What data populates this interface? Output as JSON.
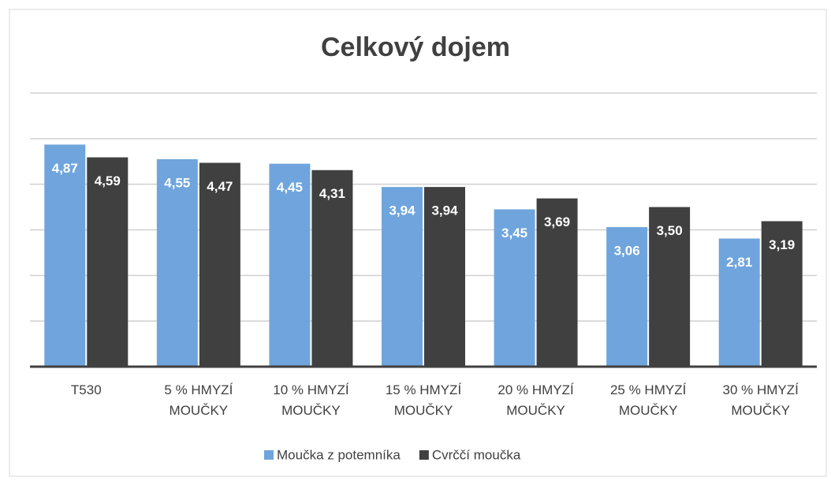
{
  "chart_data": {
    "type": "bar",
    "title": "Celkový dojem",
    "categories": [
      "T530",
      "5 % HMYZÍ MOUČKY",
      "10 % HMYZÍ MOUČKY",
      "15 % HMYZÍ MOUČKY",
      "20 % HMYZÍ MOUČKY",
      "25 % HMYZÍ MOUČKY",
      "30 % HMYZÍ MOUČKY"
    ],
    "series": [
      {
        "name": "Moučka z potemníka",
        "color": "#6fa5dc",
        "values": [
          4.87,
          4.55,
          4.45,
          3.94,
          3.45,
          3.06,
          2.81
        ],
        "value_labels": [
          "4,87",
          "4,55",
          "4,45",
          "3,94",
          "3,45",
          "3,06",
          "2,81"
        ]
      },
      {
        "name": "Cvrččí moučka",
        "color": "#404040",
        "values": [
          4.59,
          4.47,
          4.31,
          3.94,
          3.69,
          3.5,
          3.19
        ],
        "value_labels": [
          "4,59",
          "4,47",
          "4,31",
          "3,94",
          "3,69",
          "3,50",
          "3,19"
        ]
      }
    ],
    "ylim": [
      0,
      6
    ],
    "yticks": [
      0,
      1,
      2,
      3,
      4,
      5,
      6
    ],
    "grid": true,
    "legend": "bottom"
  }
}
